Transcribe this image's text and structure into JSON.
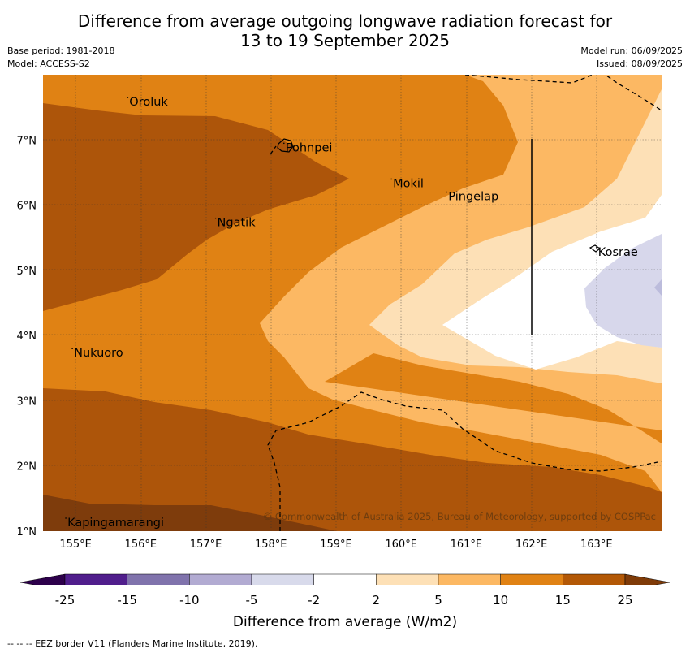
{
  "title": {
    "line1": "Difference from average outgoing longwave radiation forecast for",
    "line2": "13 to 19 September 2025"
  },
  "meta": {
    "base_period": "Base period: 1981-2018",
    "model": "Model: ACCESS-S2",
    "model_run": "Model run: 06/09/2025",
    "issued": "Issued: 08/09/2025"
  },
  "map": {
    "lon_range": [
      154.5,
      164.0
    ],
    "lat_range": [
      1.0,
      8.0
    ],
    "lon_ticks": [
      "155°E",
      "156°E",
      "157°E",
      "158°E",
      "159°E",
      "160°E",
      "161°E",
      "162°E",
      "163°E"
    ],
    "lat_ticks": [
      "1°N",
      "2°N",
      "3°N",
      "4°N",
      "5°N",
      "6°N",
      "7°N"
    ],
    "places": [
      {
        "name": "Oroluk",
        "lon": 155.8,
        "lat": 7.6
      },
      {
        "name": "Pohnpei",
        "lon": 158.2,
        "lat": 6.9
      },
      {
        "name": "Mokil",
        "lon": 159.85,
        "lat": 6.35
      },
      {
        "name": "Pingelap",
        "lon": 160.7,
        "lat": 6.15
      },
      {
        "name": "Ngatik",
        "lon": 157.15,
        "lat": 5.75
      },
      {
        "name": "Kosrae",
        "lon": 163.0,
        "lat": 5.3
      },
      {
        "name": "Nukuoro",
        "lon": 154.95,
        "lat": 3.75
      },
      {
        "name": "Kapingamarangi",
        "lon": 154.85,
        "lat": 1.15
      }
    ],
    "copyright": "© Commonwealth of Australia 2025, Bureau of Meteorology, supported by COSPPac",
    "colors": {
      "dark_brown_25": "#7e3c0c",
      "brown_15": "#ad550a",
      "orange_10": "#e08214",
      "light_orange_5": "#fcb863",
      "pale_2": "#fde0b6",
      "white": "#ffffff",
      "light_purple_-2": "#d7d7eb"
    }
  },
  "colorbar": {
    "ticks": [
      "-25",
      "-15",
      "-10",
      "-5",
      "-2",
      "2",
      "5",
      "10",
      "15",
      "25"
    ],
    "colors": [
      "#501e8c",
      "#8073ac",
      "#b2abd2",
      "#d8daeb",
      "#ffffff",
      "#fde0b6",
      "#fcb863",
      "#e08214",
      "#b35806"
    ],
    "extend_low": "#2d004b",
    "extend_high": "#7f3b08",
    "title": "Difference from average (W/m2)"
  },
  "footer": "--  --  -- EEZ border V11 (Flanders Marine Institute, 2019)."
}
